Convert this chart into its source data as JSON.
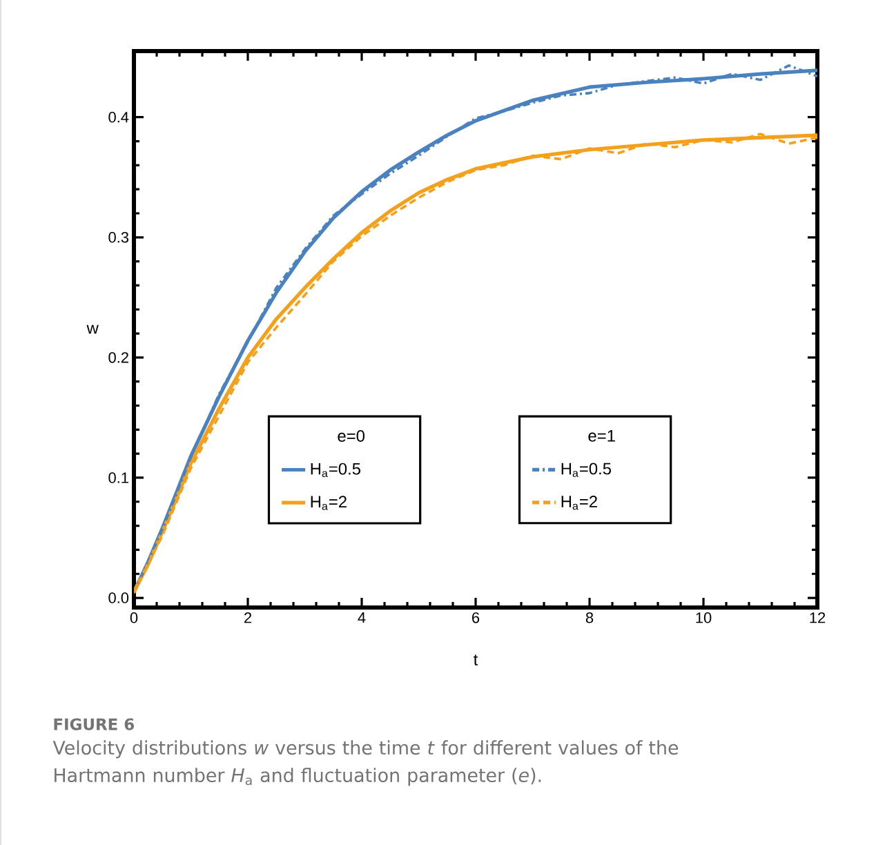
{
  "chart_data": {
    "type": "line",
    "xlabel": "t",
    "ylabel": "w",
    "legend_title": [
      "e=0",
      "e=1"
    ],
    "legend": "bottom",
    "xlim": [
      0,
      12
    ],
    "ylim": [
      -0.008,
      0.455
    ],
    "xticks": [
      0,
      2,
      4,
      6,
      8,
      10,
      12
    ],
    "yticks": [
      {
        "value": 0,
        "label": "0.0"
      },
      {
        "value": 0.1,
        "label": "0.1"
      },
      {
        "value": 0.2,
        "label": "0.2"
      },
      {
        "value": 0.3,
        "label": "0.3"
      },
      {
        "value": 0.4,
        "label": "0.4"
      }
    ],
    "series": [
      {
        "name": "H$_{a}$=0.5",
        "color": "#4a81bf",
        "line_style": "solid",
        "x": [
          0,
          0.25,
          0.5,
          0.75,
          1,
          1.5,
          2,
          2.5,
          3,
          3.5,
          4,
          4.5,
          5,
          5.5,
          6,
          7,
          8,
          9,
          10,
          11,
          12
        ],
        "values": [
          0.005,
          0.03,
          0.058,
          0.088,
          0.118,
          0.168,
          0.214,
          0.254,
          0.288,
          0.316,
          0.338,
          0.356,
          0.371,
          0.385,
          0.397,
          0.414,
          0.425,
          0.429,
          0.432,
          0.436,
          0.439
        ]
      },
      {
        "name": "H$_{a}$=2",
        "color": "#f5a01a",
        "line_style": "solid",
        "x": [
          0,
          0.25,
          0.5,
          0.75,
          1,
          1.5,
          2,
          2.5,
          3,
          3.5,
          4,
          4.5,
          5,
          5.5,
          6,
          7,
          8,
          9,
          10,
          11,
          12
        ],
        "values": [
          0.005,
          0.028,
          0.055,
          0.083,
          0.112,
          0.158,
          0.2,
          0.232,
          0.258,
          0.282,
          0.304,
          0.322,
          0.337,
          0.348,
          0.357,
          0.367,
          0.373,
          0.377,
          0.381,
          0.383,
          0.385
        ]
      },
      {
        "name": "H$_{a}$=0.5",
        "color": "#4a81bf",
        "line_style": "dashdot",
        "x": [
          0,
          0.5,
          1,
          1.5,
          2,
          2.5,
          3,
          3.5,
          4,
          4.5,
          5,
          5.5,
          6,
          6.5,
          7,
          7.5,
          8,
          8.5,
          9,
          9.5,
          10,
          10.5,
          11,
          11.5,
          12
        ],
        "values": [
          0.004,
          0.057,
          0.117,
          0.17,
          0.213,
          0.258,
          0.29,
          0.318,
          0.336,
          0.353,
          0.368,
          0.384,
          0.399,
          0.405,
          0.412,
          0.418,
          0.42,
          0.427,
          0.43,
          0.433,
          0.428,
          0.436,
          0.431,
          0.443,
          0.434
        ]
      },
      {
        "name": "H$_{a}$=2",
        "color": "#f5a01a",
        "line_style": "dashed",
        "x": [
          0,
          0.5,
          1,
          1.5,
          2,
          2.5,
          3,
          3.5,
          4,
          4.5,
          5,
          5.5,
          6,
          6.5,
          7,
          7.5,
          8,
          8.5,
          9,
          9.5,
          10,
          10.5,
          11,
          11.5,
          12
        ],
        "values": [
          0.004,
          0.052,
          0.108,
          0.152,
          0.196,
          0.225,
          0.252,
          0.28,
          0.301,
          0.318,
          0.333,
          0.346,
          0.356,
          0.36,
          0.368,
          0.365,
          0.374,
          0.37,
          0.378,
          0.375,
          0.381,
          0.379,
          0.386,
          0.378,
          0.383
        ]
      }
    ],
    "annotations": [
      "**FIGURE 6**",
      "Velocity distributions *w* versus the time *t* for different values of the Hartmann number *H*$_{a}$ and fluctuation parameter (*e*)."
    ]
  }
}
